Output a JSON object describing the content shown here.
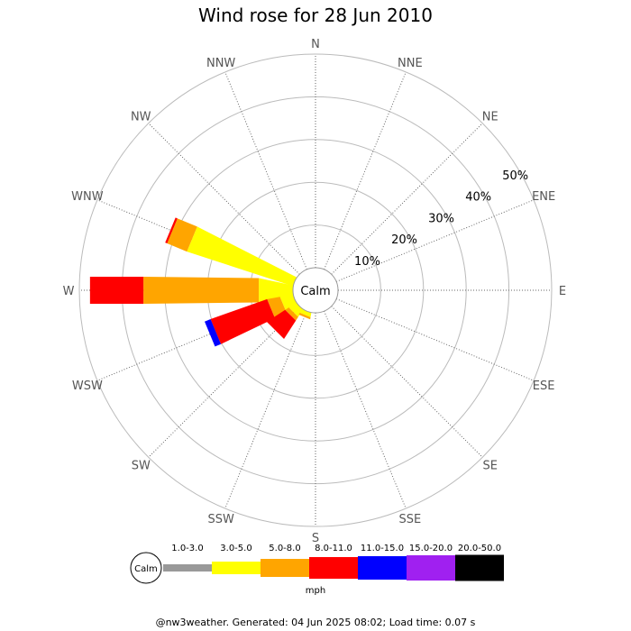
{
  "chart_data": {
    "type": "wind-rose",
    "title": "Wind rose for 28 Jun 2010",
    "directions": [
      "N",
      "NNE",
      "NE",
      "ENE",
      "E",
      "ESE",
      "SE",
      "SSE",
      "S",
      "SSW",
      "SW",
      "WSW",
      "W",
      "WNW",
      "NW",
      "NNW"
    ],
    "radial_labels": [
      "10%",
      "20%",
      "30%",
      "40%",
      "50%"
    ],
    "radial_max": 50,
    "calm_label": "Calm",
    "unit": "mph",
    "speed_bins": [
      {
        "label": "1.0-3.0",
        "color": "#999999"
      },
      {
        "label": "3.0-5.0",
        "color": "#ffff00"
      },
      {
        "label": "5.0-8.0",
        "color": "#ffa500"
      },
      {
        "label": "8.0-11.0",
        "color": "#ff0000"
      },
      {
        "label": "11.0-15.0",
        "color": "#0000ff"
      },
      {
        "label": "15.0-20.0",
        "color": "#a020f0"
      },
      {
        "label": "20.0-50.0",
        "color": "#000000"
      }
    ],
    "series": [
      {
        "direction": "WNW",
        "values": [
          0,
          26,
          5,
          0.5,
          0,
          0,
          0
        ]
      },
      {
        "direction": "W",
        "values": [
          0,
          8,
          27,
          12.5,
          0,
          0,
          0
        ]
      },
      {
        "direction": "WSW",
        "values": [
          0,
          3,
          3,
          14,
          1.5,
          0,
          0
        ]
      },
      {
        "direction": "SW",
        "values": [
          0,
          2,
          1,
          5,
          0,
          0,
          0
        ]
      },
      {
        "direction": "SSW",
        "values": [
          0,
          1,
          0.5,
          0,
          0,
          0,
          0
        ]
      }
    ]
  },
  "footer": "@nw3weather. Generated: 04 Jun 2025 08:02; Load time: 0.07 s"
}
